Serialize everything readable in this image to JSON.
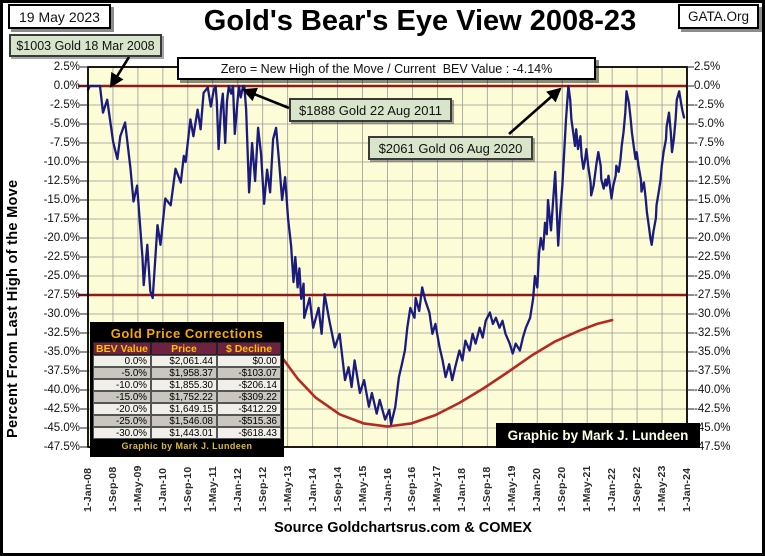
{
  "page": {
    "date_box": "19 May 2023",
    "title": "Gold's Bear's Eye View 2008-23",
    "gata": "GATA.Org",
    "footer_source": "Source Goldchartsrus.com & COMEX"
  },
  "annotations": {
    "gold_2008": "$1003 Gold 18 Mar 2008",
    "gold_2011": "$1888 Gold 22 Aug 2011",
    "gold_2020": "$2061 Gold 06 Aug 2020",
    "zero_line_note": "Zero = New High of the Move / Current  BEV Value : -4.14%",
    "credit_box": "Graphic by Mark J. Lundeen"
  },
  "corrections_table": {
    "title": "Gold Price Corrections",
    "columns": [
      "BEV Value",
      "Price",
      "$ Decline"
    ],
    "rows": [
      [
        "0.0%",
        "$2,061.44",
        "$0.00"
      ],
      [
        "-5.0%",
        "$1,958.37",
        "-$103.07"
      ],
      [
        "-10.0%",
        "$1,855.30",
        "-$206.14"
      ],
      [
        "-15.0%",
        "$1,752.22",
        "-$309.22"
      ],
      [
        "-20.0%",
        "$1,649.15",
        "-$412.29"
      ],
      [
        "-25.0%",
        "$1,546.08",
        "-$515.36"
      ],
      [
        "-30.0%",
        "$1,443.01",
        "-$618.43"
      ]
    ],
    "footer": "Graphic by Mark J. Lundeen"
  },
  "colors": {
    "plot_bg": "#fcfcd6",
    "grid": "#9a9a9a",
    "accent_red": "#8e1a1a",
    "curve_red": "#b32a22",
    "line_blue": "#1b1b7e",
    "annotation_green": "#d9e5cb",
    "table_gold": "#ffc000"
  },
  "chart_data": {
    "type": "line",
    "title": "Gold's Bear's Eye View 2008-23",
    "xlabel": "",
    "ylabel": "Percent  From Last High of the Move",
    "ylim": [
      -47.5,
      2.5
    ],
    "ytick_step": 2.5,
    "grid": true,
    "legend_position": "none",
    "current_bev_value": "-4.14%",
    "reference_lines_pct": [
      0.0,
      -27.5
    ],
    "ytick_labels": [
      "2.5%",
      "0.0%",
      "-2.5%",
      "-5.0%",
      "-7.5%",
      "-10.0%",
      "-12.5%",
      "-15.0%",
      "-17.5%",
      "-20.0%",
      "-22.5%",
      "-25.0%",
      "-27.5%",
      "-30.0%",
      "-32.5%",
      "-35.0%",
      "-37.5%",
      "-40.0%",
      "-42.5%",
      "-45.0%",
      "-47.5%"
    ],
    "xtick_labels": [
      "1-Jan-08",
      "1-Sep-08",
      "1-May-09",
      "1-Jan-10",
      "1-Sep-10",
      "1-May-11",
      "1-Jan-12",
      "1-Sep-12",
      "1-May-13",
      "1-Jan-14",
      "1-Sep-14",
      "1-May-15",
      "1-Jan-16",
      "1-Sep-16",
      "1-May-17",
      "1-Jan-18",
      "1-Sep-18",
      "1-May-19",
      "1-Jan-20",
      "1-Sep-20",
      "1-May-21",
      "1-Jan-22",
      "1-Sep-22",
      "1-May-23",
      "1-Jan-24"
    ],
    "x_unit": "fraction of x-axis from 1-Jan-08 to 1-Jan-24",
    "series": [
      {
        "name": "Gold Bear's Eye View (% from last high)",
        "color": "#1b1b7e",
        "points": [
          [
            0.0,
            -0.5
          ],
          [
            0.003,
            0
          ],
          [
            0.02,
            0
          ],
          [
            0.025,
            -3.5
          ],
          [
            0.032,
            -1.8
          ],
          [
            0.042,
            -7.4
          ],
          [
            0.049,
            -9.6
          ],
          [
            0.054,
            -6.6
          ],
          [
            0.062,
            -4.8
          ],
          [
            0.071,
            -10.9
          ],
          [
            0.076,
            -15.2
          ],
          [
            0.082,
            -13.1
          ],
          [
            0.091,
            -22.6
          ],
          [
            0.093,
            -26.2
          ],
          [
            0.099,
            -20.9
          ],
          [
            0.104,
            -27.0
          ],
          [
            0.108,
            -27.9
          ],
          [
            0.116,
            -18.3
          ],
          [
            0.121,
            -20.9
          ],
          [
            0.129,
            -14.8
          ],
          [
            0.138,
            -15.7
          ],
          [
            0.146,
            -10.9
          ],
          [
            0.155,
            -12.7
          ],
          [
            0.16,
            -9.2
          ],
          [
            0.163,
            -10.0
          ],
          [
            0.171,
            -4.4
          ],
          [
            0.176,
            -6.6
          ],
          [
            0.183,
            -3.1
          ],
          [
            0.188,
            -5.7
          ],
          [
            0.193,
            -0.9
          ],
          [
            0.2,
            -0.2
          ],
          [
            0.205,
            -2.7
          ],
          [
            0.21,
            -0.5
          ],
          [
            0.213,
            0
          ],
          [
            0.215,
            -2.0
          ],
          [
            0.218,
            -8.3
          ],
          [
            0.222,
            -3.0
          ],
          [
            0.225,
            -1.0
          ],
          [
            0.229,
            -7.5
          ],
          [
            0.232,
            -2.0
          ],
          [
            0.235,
            0
          ],
          [
            0.239,
            -1.0
          ],
          [
            0.242,
            0
          ],
          [
            0.245,
            -6.3
          ],
          [
            0.249,
            -2.5
          ],
          [
            0.252,
            0
          ],
          [
            0.255,
            -1.5
          ],
          [
            0.259,
            0
          ],
          [
            0.261,
            0
          ],
          [
            0.264,
            -3.0
          ],
          [
            0.269,
            -14.0
          ],
          [
            0.274,
            -7.5
          ],
          [
            0.279,
            -12.5
          ],
          [
            0.284,
            -5.5
          ],
          [
            0.289,
            -9.0
          ],
          [
            0.294,
            -15.5
          ],
          [
            0.299,
            -11.0
          ],
          [
            0.304,
            -14.0
          ],
          [
            0.309,
            -7.0
          ],
          [
            0.314,
            -5.5
          ],
          [
            0.319,
            -10.0
          ],
          [
            0.324,
            -15.0
          ],
          [
            0.329,
            -12.0
          ],
          [
            0.334,
            -17.5
          ],
          [
            0.339,
            -21.0
          ],
          [
            0.343,
            -25.8
          ],
          [
            0.346,
            -22.5
          ],
          [
            0.35,
            -26.5
          ],
          [
            0.353,
            -24.0
          ],
          [
            0.356,
            -28.0
          ],
          [
            0.36,
            -26.0
          ],
          [
            0.361,
            -30.5
          ],
          [
            0.37,
            -27.9
          ],
          [
            0.376,
            -31.8
          ],
          [
            0.385,
            -29.2
          ],
          [
            0.39,
            -32.6
          ],
          [
            0.395,
            -27.4
          ],
          [
            0.403,
            -30.9
          ],
          [
            0.412,
            -34.4
          ],
          [
            0.42,
            -32.6
          ],
          [
            0.429,
            -38.7
          ],
          [
            0.435,
            -37.0
          ],
          [
            0.44,
            -39.6
          ],
          [
            0.445,
            -36.1
          ],
          [
            0.454,
            -40.4
          ],
          [
            0.461,
            -38.7
          ],
          [
            0.469,
            -42.2
          ],
          [
            0.474,
            -40.4
          ],
          [
            0.482,
            -43.1
          ],
          [
            0.487,
            -41.3
          ],
          [
            0.496,
            -43.9
          ],
          [
            0.503,
            -42.6
          ],
          [
            0.506,
            -44.5
          ],
          [
            0.513,
            -42.2
          ],
          [
            0.519,
            -38.3
          ],
          [
            0.524,
            -36.6
          ],
          [
            0.529,
            -34.8
          ],
          [
            0.533,
            -31.8
          ],
          [
            0.538,
            -29.2
          ],
          [
            0.545,
            -30.5
          ],
          [
            0.547,
            -27.9
          ],
          [
            0.553,
            -29.6
          ],
          [
            0.558,
            -26.5
          ],
          [
            0.563,
            -28.2
          ],
          [
            0.57,
            -29.8
          ],
          [
            0.575,
            -32.6
          ],
          [
            0.58,
            -31.3
          ],
          [
            0.587,
            -34.4
          ],
          [
            0.592,
            -36.1
          ],
          [
            0.597,
            -38.3
          ],
          [
            0.603,
            -36.6
          ],
          [
            0.608,
            -38.7
          ],
          [
            0.613,
            -37.0
          ],
          [
            0.62,
            -34.8
          ],
          [
            0.625,
            -36.1
          ],
          [
            0.63,
            -33.5
          ],
          [
            0.637,
            -34.8
          ],
          [
            0.642,
            -32.6
          ],
          [
            0.647,
            -33.9
          ],
          [
            0.654,
            -31.8
          ],
          [
            0.659,
            -33.1
          ],
          [
            0.664,
            -30.9
          ],
          [
            0.671,
            -29.8
          ],
          [
            0.676,
            -31.3
          ],
          [
            0.681,
            -30.5
          ],
          [
            0.687,
            -31.8
          ],
          [
            0.692,
            -30.9
          ],
          [
            0.697,
            -32.6
          ],
          [
            0.704,
            -33.9
          ],
          [
            0.709,
            -35.2
          ],
          [
            0.714,
            -33.9
          ],
          [
            0.721,
            -34.8
          ],
          [
            0.726,
            -33.1
          ],
          [
            0.731,
            -31.8
          ],
          [
            0.738,
            -30.5
          ],
          [
            0.743,
            -28.0
          ],
          [
            0.746,
            -25.0
          ],
          [
            0.75,
            -26.5
          ],
          [
            0.753,
            -22.0
          ],
          [
            0.756,
            -20.0
          ],
          [
            0.76,
            -21.5
          ],
          [
            0.763,
            -18.0
          ],
          [
            0.766,
            -19.5
          ],
          [
            0.768,
            -15.0
          ],
          [
            0.773,
            -19.0
          ],
          [
            0.78,
            -11.3
          ],
          [
            0.785,
            -21.0
          ],
          [
            0.788,
            -17.0
          ],
          [
            0.792,
            -13.0
          ],
          [
            0.795,
            -8.7
          ],
          [
            0.798,
            -4.4
          ],
          [
            0.802,
            0
          ],
          [
            0.805,
            -1.8
          ],
          [
            0.807,
            -4.4
          ],
          [
            0.81,
            -6.1
          ],
          [
            0.813,
            -7.9
          ],
          [
            0.815,
            -5.7
          ],
          [
            0.818,
            -8.3
          ],
          [
            0.822,
            -6.6
          ],
          [
            0.824,
            -9.2
          ],
          [
            0.827,
            -10.9
          ],
          [
            0.83,
            -9.6
          ],
          [
            0.832,
            -8.3
          ],
          [
            0.835,
            -10.5
          ],
          [
            0.839,
            -12.7
          ],
          [
            0.84,
            -14.4
          ],
          [
            0.844,
            -13.1
          ],
          [
            0.847,
            -11.3
          ],
          [
            0.849,
            -10.1
          ],
          [
            0.852,
            -8.7
          ],
          [
            0.856,
            -10.5
          ],
          [
            0.857,
            -12.3
          ],
          [
            0.861,
            -13.5
          ],
          [
            0.864,
            -12.3
          ],
          [
            0.866,
            -13.1
          ],
          [
            0.869,
            -11.8
          ],
          [
            0.872,
            -13.5
          ],
          [
            0.874,
            -14.8
          ],
          [
            0.877,
            -13.1
          ],
          [
            0.881,
            -11.8
          ],
          [
            0.882,
            -10.5
          ],
          [
            0.886,
            -11.3
          ],
          [
            0.889,
            -9.6
          ],
          [
            0.891,
            -7.9
          ],
          [
            0.894,
            -6.1
          ],
          [
            0.897,
            -3.5
          ],
          [
            0.899,
            -0.7
          ],
          [
            0.903,
            -2.2
          ],
          [
            0.906,
            -4.4
          ],
          [
            0.908,
            -6.1
          ],
          [
            0.911,
            -7.9
          ],
          [
            0.914,
            -9.6
          ],
          [
            0.916,
            -8.7
          ],
          [
            0.919,
            -10.5
          ],
          [
            0.923,
            -12.3
          ],
          [
            0.924,
            -13.9
          ],
          [
            0.928,
            -12.7
          ],
          [
            0.931,
            -14.8
          ],
          [
            0.933,
            -16.6
          ],
          [
            0.936,
            -18.3
          ],
          [
            0.939,
            -20.1
          ],
          [
            0.941,
            -20.9
          ],
          [
            0.944,
            -19.1
          ],
          [
            0.948,
            -17.4
          ],
          [
            0.949,
            -15.7
          ],
          [
            0.953,
            -13.9
          ],
          [
            0.956,
            -12.3
          ],
          [
            0.958,
            -10.5
          ],
          [
            0.961,
            -8.7
          ],
          [
            0.965,
            -7.0
          ],
          [
            0.966,
            -5.4
          ],
          [
            0.97,
            -3.5
          ],
          [
            0.973,
            -6.1
          ],
          [
            0.975,
            -8.7
          ],
          [
            0.978,
            -7.0
          ],
          [
            0.981,
            -4.4
          ],
          [
            0.983,
            -1.8
          ],
          [
            0.987,
            -0.7
          ],
          [
            0.99,
            -2.2
          ],
          [
            0.992,
            -3.1
          ],
          [
            0.995,
            -4.14
          ]
        ]
      },
      {
        "name": "trend-curve",
        "color": "#b32a22",
        "points": [
          [
            0.319,
            -35.2
          ],
          [
            0.35,
            -38.5
          ],
          [
            0.38,
            -41.0
          ],
          [
            0.42,
            -43.2
          ],
          [
            0.46,
            -44.4
          ],
          [
            0.5,
            -44.8
          ],
          [
            0.54,
            -44.4
          ],
          [
            0.58,
            -43.3
          ],
          [
            0.62,
            -41.7
          ],
          [
            0.66,
            -39.8
          ],
          [
            0.7,
            -37.7
          ],
          [
            0.74,
            -35.5
          ],
          [
            0.78,
            -33.6
          ],
          [
            0.82,
            -32.2
          ],
          [
            0.85,
            -31.3
          ],
          [
            0.875,
            -30.8
          ]
        ]
      }
    ]
  }
}
